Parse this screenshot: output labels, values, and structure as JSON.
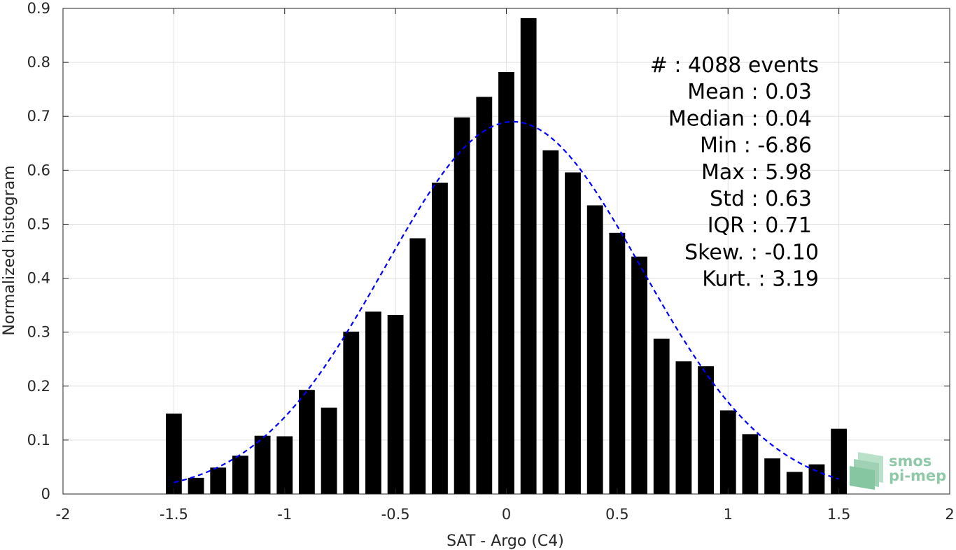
{
  "chart_data": {
    "type": "bar",
    "xlabel": "SAT - Argo (C4)",
    "ylabel": "Normalized histogram",
    "xlim": [
      -2,
      2
    ],
    "ylim": [
      0,
      0.9
    ],
    "xticks": [
      -2,
      -1.5,
      -1,
      -0.5,
      0,
      0.5,
      1,
      1.5,
      2
    ],
    "xtick_labels": [
      "-2",
      "-1.5",
      "-1",
      "-0.5",
      "0",
      "0.5",
      "1",
      "1.5",
      "2"
    ],
    "yticks": [
      0,
      0.1,
      0.2,
      0.3,
      0.4,
      0.5,
      0.6,
      0.7,
      0.8,
      0.9
    ],
    "ytick_labels": [
      "0",
      "0.1",
      "0.2",
      "0.3",
      "0.4",
      "0.5",
      "0.6",
      "0.7",
      "0.8",
      "0.9"
    ],
    "grid": true,
    "bar_color": "#000000",
    "bin_centers": [
      -1.5,
      -1.4,
      -1.3,
      -1.2,
      -1.1,
      -1.0,
      -0.9,
      -0.8,
      -0.7,
      -0.6,
      -0.5,
      -0.4,
      -0.3,
      -0.2,
      -0.1,
      0.0,
      0.1,
      0.2,
      0.3,
      0.4,
      0.5,
      0.6,
      0.7,
      0.8,
      0.9,
      1.0,
      1.1,
      1.2,
      1.3,
      1.4,
      1.5
    ],
    "values": [
      0.149,
      0.03,
      0.049,
      0.071,
      0.108,
      0.107,
      0.193,
      0.16,
      0.301,
      0.338,
      0.332,
      0.474,
      0.577,
      0.698,
      0.736,
      0.782,
      0.882,
      0.637,
      0.596,
      0.535,
      0.484,
      0.44,
      0.288,
      0.246,
      0.237,
      0.155,
      0.111,
      0.066,
      0.041,
      0.055,
      0.121
    ],
    "fit_curve": {
      "style": "dashed",
      "color": "#0000ff",
      "mean": 0.03,
      "std": 0.58,
      "peak": 0.69,
      "x_range": [
        -1.5,
        1.5
      ]
    },
    "stats": [
      {
        "label": "#  : 4088 events"
      },
      {
        "label": "Mean : 0.03"
      },
      {
        "label": "Median : 0.04"
      },
      {
        "label": "Min : -6.86"
      },
      {
        "label": "Max : 5.98"
      },
      {
        "label": "Std : 0.63"
      },
      {
        "label": "IQR : 0.71"
      },
      {
        "label": "Skew. : -0.10"
      },
      {
        "label": "Kurt. : 3.19"
      }
    ]
  },
  "logo": {
    "line1": "smos",
    "line2": "pi-mep",
    "color": "#8fc9a8"
  }
}
